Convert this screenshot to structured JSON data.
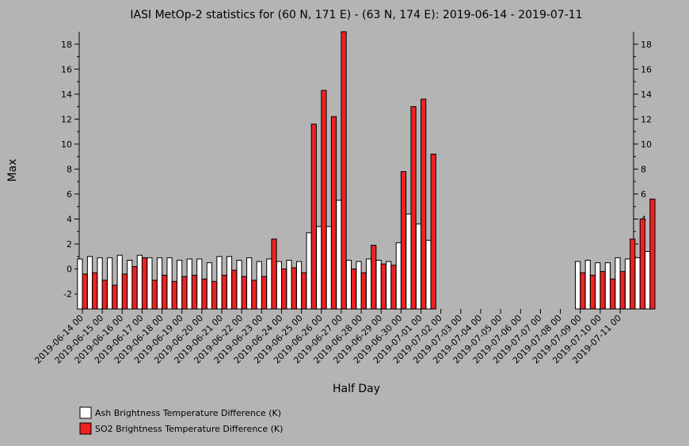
{
  "chart_data": {
    "type": "bar",
    "title": "IASI MetOp-2 statistics for (60 N, 171 E) - (63 N, 174 E): 2019-06-14 - 2019-07-11",
    "xlabel": "Half Day",
    "ylabel": "Max",
    "ylim": [
      -3.2,
      19
    ],
    "yticks": [
      -2,
      0,
      2,
      4,
      6,
      8,
      10,
      12,
      14,
      16,
      18
    ],
    "grid": false,
    "legend_position": "bottom-left",
    "x_tick_labels": [
      "2019-06-14 00",
      "2019-06-15 00",
      "2019-06-16 00",
      "2019-06-17 00",
      "2019-06-18 00",
      "2019-06-19 00",
      "2019-06-20 00",
      "2019-06-21 00",
      "2019-06-22 00",
      "2019-06-23 00",
      "2019-06-24 00",
      "2019-06-25 00",
      "2019-06-26 00",
      "2019-06-27 00",
      "2019-06-28 00",
      "2019-06-29 00",
      "2019-06-30 00",
      "2019-07-01 00",
      "2019-07-02 00",
      "2019-07-03 00",
      "2019-07-04 00",
      "2019-07-05 00",
      "2019-07-06 00",
      "2019-07-07 00",
      "2019-07-08 00",
      "2019-07-09 00",
      "2019-07-10 00",
      "2019-07-11 00"
    ],
    "series": [
      {
        "name": "Ash Brightness Temperature Difference (K)",
        "color": "#ffffff",
        "values": [
          0.8,
          1.0,
          0.9,
          0.9,
          1.1,
          0.7,
          1.1,
          0.9,
          0.9,
          0.9,
          0.7,
          0.8,
          0.8,
          0.5,
          1.0,
          1.0,
          0.7,
          0.9,
          0.6,
          0.8,
          0.6,
          0.7,
          0.6,
          2.9,
          3.4,
          3.4,
          5.5,
          0.7,
          0.6,
          0.8,
          0.7,
          0.6,
          2.1,
          4.4,
          3.6,
          2.3,
          null,
          null,
          null,
          null,
          null,
          null,
          null,
          null,
          null,
          null,
          null,
          null,
          null,
          null,
          0.6,
          0.7,
          0.5,
          0.5,
          0.9,
          0.8,
          0.9,
          1.4
        ]
      },
      {
        "name": "SO2 Brightness Temperature Difference (K)",
        "color": "#ee2222",
        "values": [
          -0.4,
          -0.3,
          -0.9,
          -1.3,
          -0.4,
          0.2,
          0.9,
          -0.9,
          -0.5,
          -1.0,
          -0.6,
          -0.5,
          -0.8,
          -1.0,
          -0.5,
          -0.1,
          -0.6,
          -0.9,
          -0.6,
          2.4,
          0.0,
          0.1,
          -0.3,
          11.6,
          14.3,
          12.2,
          19.0,
          0.0,
          -0.3,
          1.9,
          0.4,
          0.3,
          7.8,
          13.0,
          13.6,
          9.2,
          null,
          null,
          null,
          null,
          null,
          null,
          null,
          null,
          null,
          null,
          null,
          null,
          null,
          null,
          -0.3,
          -0.5,
          -0.2,
          -0.8,
          -0.2,
          2.4,
          4.0,
          5.6
        ]
      }
    ]
  }
}
